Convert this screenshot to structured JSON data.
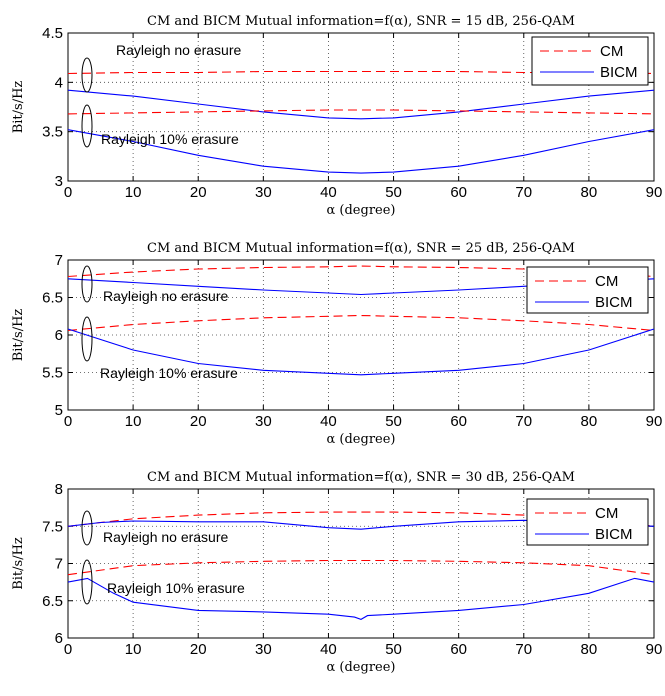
{
  "chart_data": [
    {
      "type": "line",
      "title": "CM and BICM Mutual information=f(α), SNR = 15 dB, 256-QAM",
      "xlabel": "α (degree)",
      "ylabel": "Bit/s/Hz",
      "xlim": [
        0,
        90
      ],
      "ylim": [
        3,
        4.5
      ],
      "xticks": [
        "0",
        "10",
        "20",
        "30",
        "40",
        "50",
        "60",
        "70",
        "80",
        "90"
      ],
      "yticks": [
        "3",
        "3.5",
        "4",
        "4.5"
      ],
      "grid": true,
      "legend_position": "top-right",
      "legend": [
        "CM",
        "BICM"
      ],
      "annotations": [
        "Rayleigh no erasure",
        "Rayleigh 10% erasure"
      ],
      "series": [
        {
          "name": "CM",
          "group": "Rayleigh no erasure",
          "x": [
            0,
            10,
            20,
            30,
            40,
            45,
            50,
            60,
            70,
            80,
            90
          ],
          "y": [
            4.09,
            4.1,
            4.1,
            4.11,
            4.11,
            4.11,
            4.11,
            4.11,
            4.1,
            4.1,
            4.09
          ]
        },
        {
          "name": "BICM",
          "group": "Rayleigh no erasure",
          "x": [
            0,
            10,
            20,
            30,
            40,
            45,
            50,
            60,
            70,
            80,
            90
          ],
          "y": [
            3.92,
            3.86,
            3.78,
            3.7,
            3.64,
            3.63,
            3.64,
            3.7,
            3.78,
            3.86,
            3.92
          ]
        },
        {
          "name": "CM",
          "group": "Rayleigh 10% erasure",
          "x": [
            0,
            10,
            20,
            30,
            40,
            45,
            50,
            60,
            70,
            80,
            90
          ],
          "y": [
            3.68,
            3.69,
            3.7,
            3.71,
            3.72,
            3.72,
            3.72,
            3.71,
            3.7,
            3.69,
            3.68
          ]
        },
        {
          "name": "BICM",
          "group": "Rayleigh 10% erasure",
          "x": [
            0,
            10,
            20,
            30,
            40,
            45,
            50,
            60,
            70,
            80,
            90
          ],
          "y": [
            3.52,
            3.4,
            3.26,
            3.15,
            3.09,
            3.08,
            3.09,
            3.15,
            3.26,
            3.4,
            3.52
          ]
        }
      ]
    },
    {
      "type": "line",
      "title": "CM and BICM Mutual information=f(α), SNR = 25 dB, 256-QAM",
      "xlabel": "α (degree)",
      "ylabel": "Bit/s/Hz",
      "xlim": [
        0,
        90
      ],
      "ylim": [
        5,
        7
      ],
      "xticks": [
        "0",
        "10",
        "20",
        "30",
        "40",
        "50",
        "60",
        "70",
        "80",
        "90"
      ],
      "yticks": [
        "5",
        "5.5",
        "6",
        "6.5",
        "7"
      ],
      "grid": true,
      "legend_position": "top-right",
      "legend": [
        "CM",
        "BICM"
      ],
      "annotations": [
        "Rayleigh no erasure",
        "Rayleigh 10% erasure"
      ],
      "series": [
        {
          "name": "CM",
          "group": "Rayleigh no erasure",
          "x": [
            0,
            10,
            20,
            30,
            40,
            45,
            50,
            60,
            70,
            80,
            90
          ],
          "y": [
            6.78,
            6.84,
            6.88,
            6.9,
            6.91,
            6.92,
            6.91,
            6.9,
            6.88,
            6.84,
            6.78
          ]
        },
        {
          "name": "BICM",
          "group": "Rayleigh no erasure",
          "x": [
            0,
            10,
            20,
            30,
            40,
            45,
            50,
            60,
            70,
            80,
            90
          ],
          "y": [
            6.75,
            6.7,
            6.65,
            6.6,
            6.56,
            6.54,
            6.56,
            6.6,
            6.65,
            6.7,
            6.75
          ]
        },
        {
          "name": "CM",
          "group": "Rayleigh 10% erasure",
          "x": [
            0,
            10,
            20,
            30,
            40,
            45,
            50,
            60,
            70,
            80,
            90
          ],
          "y": [
            6.06,
            6.14,
            6.19,
            6.23,
            6.25,
            6.26,
            6.25,
            6.23,
            6.19,
            6.14,
            6.06
          ]
        },
        {
          "name": "BICM",
          "group": "Rayleigh 10% erasure",
          "x": [
            0,
            10,
            20,
            30,
            40,
            45,
            50,
            60,
            70,
            80,
            90
          ],
          "y": [
            6.08,
            5.8,
            5.62,
            5.53,
            5.49,
            5.47,
            5.49,
            5.53,
            5.62,
            5.8,
            6.08
          ]
        }
      ]
    },
    {
      "type": "line",
      "title": "CM and BICM Mutual information=f(α), SNR = 30 dB, 256-QAM",
      "xlabel": "α (degree)",
      "ylabel": "Bit/s/Hz",
      "xlim": [
        0,
        90
      ],
      "ylim": [
        6,
        8
      ],
      "xticks": [
        "0",
        "10",
        "20",
        "30",
        "40",
        "50",
        "60",
        "70",
        "80",
        "90"
      ],
      "yticks": [
        "6",
        "6.5",
        "7",
        "7.5",
        "8"
      ],
      "grid": true,
      "legend_position": "top-right",
      "legend": [
        "CM",
        "BICM"
      ],
      "annotations": [
        "Rayleigh no erasure",
        "Rayleigh 10% erasure"
      ],
      "series": [
        {
          "name": "CM",
          "group": "Rayleigh no erasure",
          "x": [
            0,
            10,
            20,
            30,
            40,
            45,
            50,
            60,
            70,
            80,
            90
          ],
          "y": [
            7.5,
            7.6,
            7.65,
            7.68,
            7.69,
            7.69,
            7.69,
            7.68,
            7.65,
            7.6,
            7.5
          ]
        },
        {
          "name": "BICM",
          "group": "Rayleigh no erasure",
          "x": [
            0,
            5,
            10,
            20,
            30,
            40,
            45,
            50,
            60,
            70,
            80,
            90
          ],
          "y": [
            7.5,
            7.55,
            7.57,
            7.56,
            7.56,
            7.48,
            7.46,
            7.5,
            7.56,
            7.58,
            7.55,
            7.5
          ]
        },
        {
          "name": "CM",
          "group": "Rayleigh 10% erasure",
          "x": [
            0,
            10,
            20,
            30,
            40,
            45,
            50,
            60,
            70,
            80,
            90
          ],
          "y": [
            6.85,
            6.97,
            7.01,
            7.03,
            7.04,
            7.04,
            7.04,
            7.03,
            7.01,
            6.97,
            6.85
          ]
        },
        {
          "name": "BICM",
          "group": "Rayleigh 10% erasure",
          "x": [
            0,
            3,
            7,
            10,
            20,
            30,
            40,
            44,
            45,
            46,
            50,
            60,
            70,
            80,
            87,
            90
          ],
          "y": [
            6.75,
            6.8,
            6.6,
            6.48,
            6.37,
            6.35,
            6.32,
            6.28,
            6.25,
            6.3,
            6.32,
            6.37,
            6.45,
            6.6,
            6.8,
            6.75
          ]
        }
      ]
    }
  ]
}
